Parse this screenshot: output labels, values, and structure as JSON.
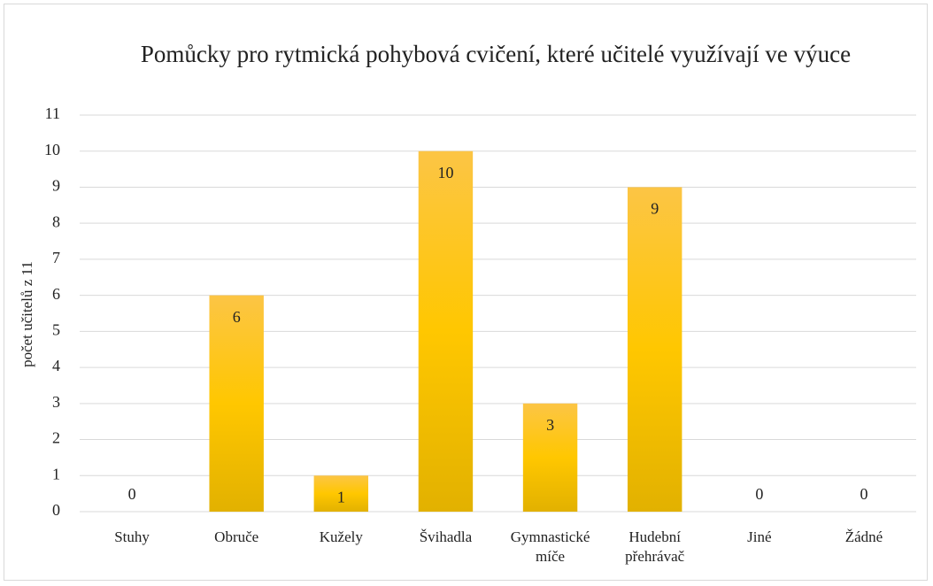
{
  "chart_data": {
    "type": "bar",
    "title": "Pomůcky pro rytmická pohybová cvičení, které učitelé využívají ve výuce",
    "y_label": "počet učitelů z 11",
    "categories": [
      "Stuhy",
      "Obruče",
      "Kužely",
      "Švihadla",
      "Gymnastické míče",
      "Hudební přehrávač",
      "Jiné",
      "Žádné"
    ],
    "values": [
      0,
      6,
      1,
      10,
      3,
      9,
      0,
      0
    ],
    "color": "#f7c030",
    "ylim": [
      0,
      11
    ],
    "yticks": [
      0,
      1,
      2,
      3,
      4,
      5,
      6,
      7,
      8,
      9,
      10,
      11
    ],
    "grid": true
  }
}
